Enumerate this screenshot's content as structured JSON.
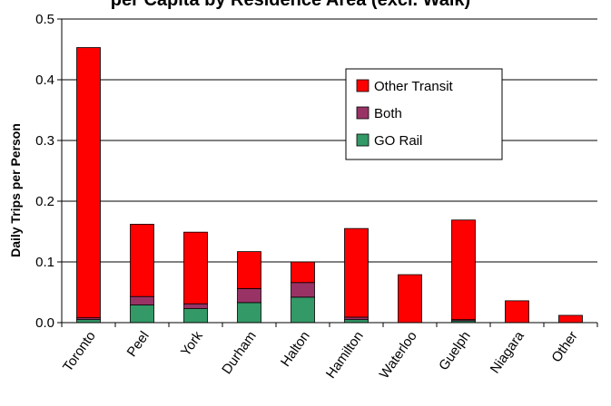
{
  "chart_data": {
    "type": "bar",
    "stacked": true,
    "title": "per Capita by Residence Area (excl. Walk)",
    "xlabel": "",
    "ylabel": "Daily Trips per Person",
    "ylim": [
      0,
      0.5
    ],
    "yticks": [
      "0.0",
      "0.1",
      "0.2",
      "0.3",
      "0.4",
      "0.5"
    ],
    "grid": true,
    "legend_position": "top-right",
    "categories": [
      "Toronto",
      "Peel",
      "York",
      "Durham",
      "Halton",
      "Hamilton",
      "Waterloo",
      "Guelph",
      "Niagara",
      "Other"
    ],
    "series": [
      {
        "name": "GO Rail",
        "color": "#339966",
        "values": [
          0.005,
          0.029,
          0.023,
          0.033,
          0.042,
          0.005,
          0.0,
          0.003,
          0.0,
          0.0
        ]
      },
      {
        "name": "Both",
        "color": "#993366",
        "values": [
          0.003,
          0.014,
          0.008,
          0.023,
          0.024,
          0.004,
          0.0,
          0.002,
          0.0,
          0.0
        ]
      },
      {
        "name": "Other Transit",
        "color": "#ff0000",
        "values": [
          0.445,
          0.119,
          0.118,
          0.061,
          0.034,
          0.146,
          0.079,
          0.164,
          0.036,
          0.012
        ]
      }
    ],
    "legend_order": [
      "Other Transit",
      "Both",
      "GO Rail"
    ]
  }
}
